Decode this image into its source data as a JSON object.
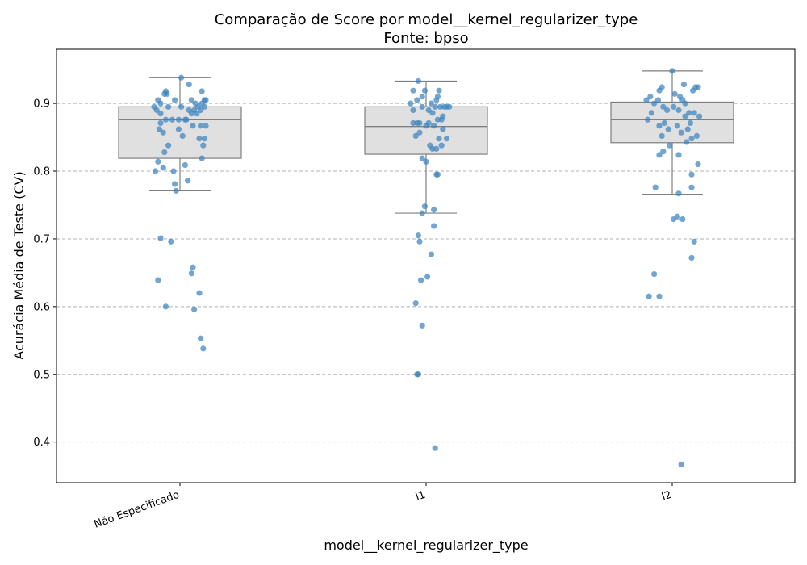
{
  "chart_data": {
    "type": "box",
    "title": "Comparação de Score por model__kernel_regularizer_type",
    "subtitle": "Fonte: bpso",
    "xlabel": "model__kernel_regularizer_type",
    "ylabel": "Acurácia Média de Teste (CV)",
    "ylim": [
      0.34,
      0.98
    ],
    "yticks": [
      0.4,
      0.5,
      0.6,
      0.7,
      0.8,
      0.9
    ],
    "ytick_labels": [
      "0.4",
      "0.5",
      "0.6",
      "0.7",
      "0.8",
      "0.9"
    ],
    "grid": "horizontal dashed",
    "categories": [
      "Não Especificado",
      "l1",
      "l2"
    ],
    "boxes": [
      {
        "category": "Não Especificado",
        "whisker_low": 0.771,
        "q1": 0.819,
        "median": 0.876,
        "q3": 0.895,
        "whisker_high": 0.938
      },
      {
        "category": "l1",
        "whisker_low": 0.738,
        "q1": 0.825,
        "median": 0.866,
        "q3": 0.895,
        "whisker_high": 0.933
      },
      {
        "category": "l2",
        "whisker_low": 0.766,
        "q1": 0.842,
        "median": 0.876,
        "q3": 0.902,
        "whisker_high": 0.948
      }
    ],
    "points": [
      {
        "category": "Não Especificado",
        "values": [
          0.938,
          0.928,
          0.918,
          0.918,
          0.914,
          0.914,
          0.905,
          0.905,
          0.905,
          0.905,
          0.905,
          0.9,
          0.9,
          0.9,
          0.895,
          0.895,
          0.895,
          0.895,
          0.895,
          0.89,
          0.89,
          0.89,
          0.89,
          0.885,
          0.885,
          0.885,
          0.876,
          0.876,
          0.876,
          0.876,
          0.876,
          0.871,
          0.867,
          0.867,
          0.867,
          0.862,
          0.862,
          0.857,
          0.852,
          0.848,
          0.848,
          0.838,
          0.838,
          0.828,
          0.819,
          0.814,
          0.809,
          0.805,
          0.8,
          0.8,
          0.786,
          0.781,
          0.771,
          0.701,
          0.696,
          0.658,
          0.649,
          0.639,
          0.62,
          0.6,
          0.596,
          0.553,
          0.538
        ],
        "jitter": [
          0.01,
          0.07,
          -0.11,
          0.17,
          -0.12,
          -0.1,
          -0.17,
          -0.04,
          0.09,
          0.19,
          0.2,
          -0.15,
          0.12,
          0.17,
          -0.09,
          0.01,
          0.14,
          0.19,
          -0.2,
          0.07,
          0.11,
          0.16,
          -0.18,
          -0.15,
          0.09,
          0.13,
          -0.06,
          -0.01,
          0.04,
          -0.11,
          0.05,
          -0.15,
          0.1,
          0.16,
          0.2,
          -0.16,
          -0.01,
          -0.13,
          0.02,
          0.15,
          0.19,
          -0.09,
          0.18,
          -0.12,
          0.17,
          -0.17,
          0.04,
          -0.13,
          -0.05,
          -0.19,
          0.06,
          -0.04,
          -0.03,
          -0.15,
          -0.07,
          0.1,
          0.09,
          -0.17,
          0.15,
          -0.11,
          0.11,
          0.16,
          0.18
        ]
      },
      {
        "category": "l1",
        "values": [
          0.933,
          0.919,
          0.919,
          0.919,
          0.91,
          0.91,
          0.905,
          0.905,
          0.9,
          0.9,
          0.895,
          0.895,
          0.895,
          0.895,
          0.895,
          0.895,
          0.89,
          0.89,
          0.886,
          0.881,
          0.876,
          0.876,
          0.871,
          0.871,
          0.871,
          0.871,
          0.867,
          0.867,
          0.862,
          0.857,
          0.852,
          0.848,
          0.848,
          0.838,
          0.838,
          0.833,
          0.833,
          0.819,
          0.814,
          0.795,
          0.795,
          0.748,
          0.743,
          0.738,
          0.719,
          0.705,
          0.696,
          0.677,
          0.644,
          0.639,
          0.605,
          0.572,
          0.5,
          0.5,
          0.391
        ],
        "jitter": [
          -0.06,
          -0.1,
          -0.01,
          0.1,
          -0.03,
          0.09,
          -0.07,
          0.08,
          0.04,
          -0.12,
          0.07,
          -0.03,
          0.11,
          0.14,
          0.16,
          0.18,
          -0.1,
          0.02,
          0.05,
          0.13,
          0.09,
          0.12,
          -0.1,
          -0.07,
          -0.05,
          0.02,
          0.0,
          0.06,
          0.13,
          -0.05,
          -0.08,
          0.1,
          0.16,
          0.03,
          0.12,
          0.05,
          0.08,
          -0.03,
          0.0,
          0.08,
          0.09,
          -0.01,
          0.06,
          -0.03,
          0.06,
          -0.06,
          -0.05,
          0.04,
          0.01,
          -0.04,
          -0.08,
          -0.03,
          -0.07,
          -0.06,
          0.07
        ]
      },
      {
        "category": "l2",
        "values": [
          0.948,
          0.928,
          0.924,
          0.924,
          0.924,
          0.919,
          0.919,
          0.914,
          0.91,
          0.91,
          0.905,
          0.905,
          0.905,
          0.9,
          0.9,
          0.895,
          0.895,
          0.89,
          0.89,
          0.886,
          0.886,
          0.886,
          0.881,
          0.881,
          0.876,
          0.871,
          0.871,
          0.867,
          0.867,
          0.862,
          0.862,
          0.857,
          0.852,
          0.852,
          0.848,
          0.843,
          0.838,
          0.829,
          0.824,
          0.824,
          0.81,
          0.795,
          0.776,
          0.776,
          0.767,
          0.733,
          0.729,
          0.729,
          0.696,
          0.672,
          0.648,
          0.615,
          0.615,
          0.367
        ],
        "jitter": [
          0.0,
          0.09,
          -0.08,
          0.18,
          0.2,
          -0.1,
          0.16,
          0.02,
          -0.17,
          0.06,
          -0.2,
          -0.11,
          0.08,
          -0.14,
          0.1,
          -0.07,
          0.01,
          -0.04,
          0.05,
          0.13,
          -0.16,
          0.17,
          0.1,
          0.21,
          -0.19,
          -0.06,
          0.14,
          -0.1,
          0.04,
          -0.03,
          0.12,
          0.07,
          -0.08,
          0.19,
          0.15,
          0.11,
          -0.02,
          -0.07,
          0.05,
          -0.1,
          0.2,
          0.15,
          -0.13,
          0.15,
          0.05,
          0.04,
          0.01,
          0.08,
          0.17,
          0.15,
          -0.14,
          -0.18,
          -0.1,
          0.07
        ]
      }
    ],
    "colors": {
      "point": "#3b84be",
      "box_fill": "#e0e0e0",
      "box_edge": "#7f7f7f",
      "grid": "#b0b0b0"
    }
  }
}
